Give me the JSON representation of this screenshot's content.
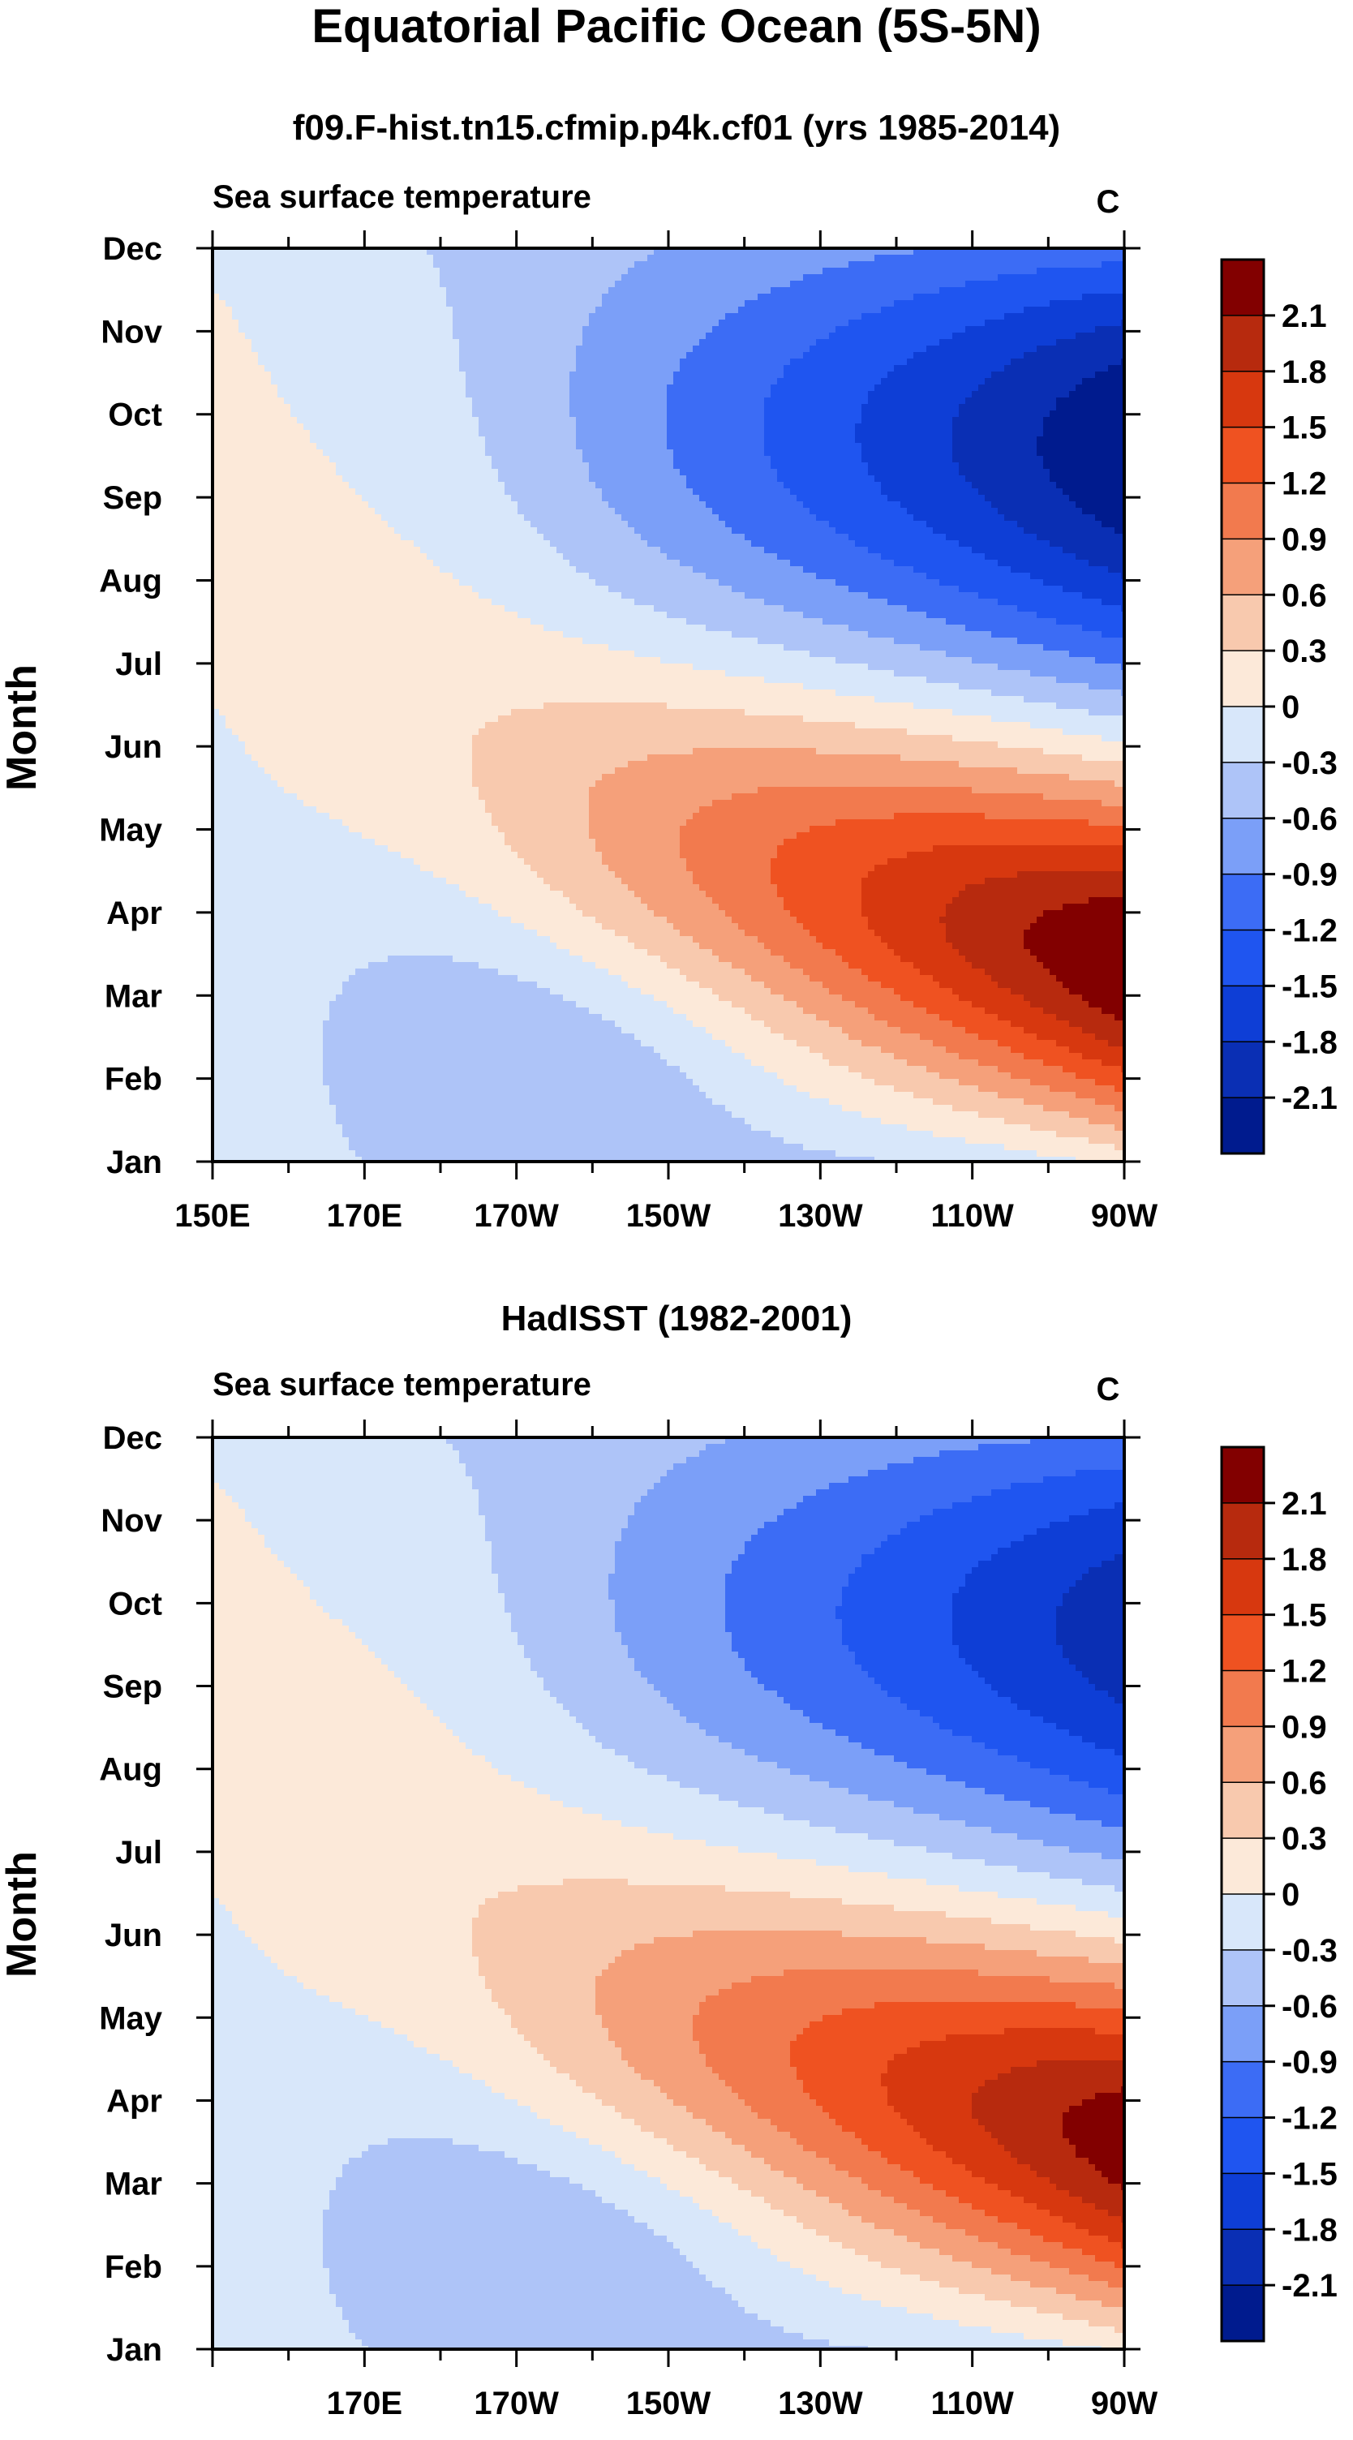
{
  "title": "Equatorial Pacific Ocean (5S-5N)",
  "chart_data": [
    {
      "type": "heatmap",
      "title": "f09.F-hist.tn15.cfmip.p4k.cf01 (yrs 1985-2014)",
      "subtitle": "Sea surface temperature",
      "units": "C",
      "ylabel": "Month",
      "xlabel": "",
      "x_ticks": [
        "150E",
        "170E",
        "170W",
        "150W",
        "130W",
        "110W",
        "90W"
      ],
      "y_ticks": [
        "Jan",
        "Feb",
        "Mar",
        "Apr",
        "May",
        "Jun",
        "Jul",
        "Aug",
        "Sep",
        "Oct",
        "Nov",
        "Dec"
      ],
      "xlim_deg_east": [
        150,
        270
      ],
      "contour_levels": [
        "2.1",
        "1.8",
        "1.5",
        "1.2",
        "0.9",
        "0.6",
        "0.3",
        "0",
        "-0.3",
        "-0.6",
        "-0.9",
        "-1.2",
        "-1.5",
        "-1.8",
        "-2.1"
      ],
      "field_params": {
        "max_anom": 2.5,
        "min_anom": -2.4,
        "warm_month": 2.4,
        "cool_month": 8.6
      }
    },
    {
      "type": "heatmap",
      "title": "HadISST (1982-2001)",
      "subtitle": "Sea surface temperature",
      "units": "C",
      "ylabel": "Month",
      "xlabel": "",
      "x_ticks": [
        "170E",
        "170W",
        "150W",
        "130W",
        "110W",
        "90W"
      ],
      "y_ticks": [
        "Jan",
        "Feb",
        "Mar",
        "Apr",
        "May",
        "Jun",
        "Jul",
        "Aug",
        "Sep",
        "Oct",
        "Nov",
        "Dec"
      ],
      "xlim_deg_east": [
        150,
        270
      ],
      "contour_levels": [
        "2.1",
        "1.8",
        "1.5",
        "1.2",
        "0.9",
        "0.6",
        "0.3",
        "0",
        "-0.3",
        "-0.6",
        "-0.9",
        "-1.2",
        "-1.5",
        "-1.8",
        "-2.1"
      ],
      "field_params": {
        "max_anom": 2.35,
        "min_anom": -2.0,
        "warm_month": 2.5,
        "cool_month": 8.7
      }
    }
  ],
  "colors": {
    "bins": [
      "#001b8e",
      "#0a2fb4",
      "#0e3ed6",
      "#1f55f0",
      "#3c6cf5",
      "#7b9ff8",
      "#aec4f8",
      "#d8e7fa",
      "#fce9d9",
      "#f8c9ae",
      "#f5a07a",
      "#f27a4e",
      "#ef5221",
      "#d7380f",
      "#b72a0e",
      "#820000"
    ],
    "axis": "#000000"
  }
}
